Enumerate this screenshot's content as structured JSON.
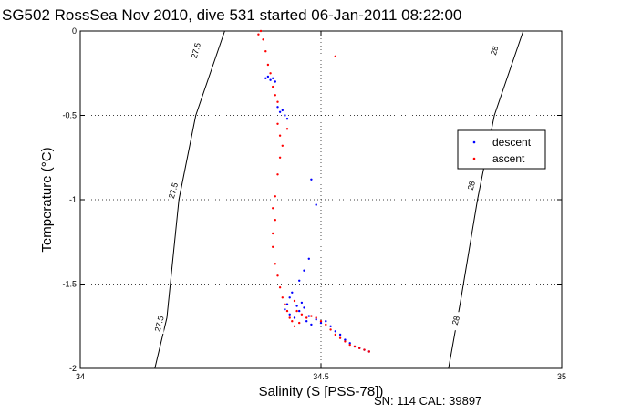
{
  "chart_data": {
    "type": "scatter",
    "title": "SG502 RossSea Nov 2010, dive 531 started 06-Jan-2011 08:22:00",
    "xlabel": "Salinity (S [PSS-78])",
    "ylabel": "Temperature (°C)",
    "xlim": [
      34,
      35
    ],
    "ylim": [
      -2,
      0
    ],
    "x_ticks": [
      "34",
      "34.5",
      "35"
    ],
    "y_ticks": [
      "0",
      "-0.5",
      "-1",
      "-1.5",
      "-2"
    ],
    "grid": true,
    "legend_position": "right",
    "isopycnals": [
      {
        "label": "27.5",
        "points": [
          [
            34.155,
            -2.0
          ],
          [
            34.18,
            -1.7
          ],
          [
            34.205,
            -1.0
          ],
          [
            34.24,
            -0.5
          ],
          [
            34.3,
            0.0
          ]
        ]
      },
      {
        "label": "28",
        "points": [
          [
            34.765,
            -2.0
          ],
          [
            34.79,
            -1.6
          ],
          [
            34.825,
            -1.0
          ],
          [
            34.86,
            -0.5
          ],
          [
            34.92,
            0.0
          ]
        ]
      }
    ],
    "isopycnal_label_positions": [
      {
        "label": "27.5",
        "s": 34.24,
        "t": -0.12
      },
      {
        "label": "27.5",
        "s": 34.193,
        "t": -0.95
      },
      {
        "label": "27.5",
        "s": 34.164,
        "t": -1.74
      },
      {
        "label": "28",
        "s": 34.86,
        "t": -0.12
      },
      {
        "label": "28",
        "s": 34.812,
        "t": -0.92
      },
      {
        "label": "28",
        "s": 34.78,
        "t": -1.72
      }
    ],
    "series": [
      {
        "name": "descent",
        "color": "#0000ff",
        "points": [
          [
            34.385,
            -0.28
          ],
          [
            34.39,
            -0.27
          ],
          [
            34.395,
            -0.29
          ],
          [
            34.4,
            -0.28
          ],
          [
            34.405,
            -0.3
          ],
          [
            34.41,
            -0.45
          ],
          [
            34.415,
            -0.48
          ],
          [
            34.42,
            -0.47
          ],
          [
            34.425,
            -0.5
          ],
          [
            34.43,
            -0.52
          ],
          [
            34.48,
            -0.88
          ],
          [
            34.49,
            -1.03
          ],
          [
            34.475,
            -1.35
          ],
          [
            34.465,
            -1.42
          ],
          [
            34.455,
            -1.48
          ],
          [
            34.44,
            -1.55
          ],
          [
            34.435,
            -1.58
          ],
          [
            34.43,
            -1.62
          ],
          [
            34.425,
            -1.65
          ],
          [
            34.435,
            -1.68
          ],
          [
            34.445,
            -1.7
          ],
          [
            34.45,
            -1.63
          ],
          [
            34.455,
            -1.66
          ],
          [
            34.46,
            -1.61
          ],
          [
            34.465,
            -1.64
          ],
          [
            34.47,
            -1.72
          ],
          [
            34.475,
            -1.69
          ],
          [
            34.48,
            -1.74
          ],
          [
            34.49,
            -1.71
          ],
          [
            34.5,
            -1.73
          ],
          [
            34.51,
            -1.72
          ],
          [
            34.52,
            -1.75
          ],
          [
            34.53,
            -1.78
          ],
          [
            34.54,
            -1.8
          ],
          [
            34.55,
            -1.83
          ],
          [
            34.56,
            -1.85
          ],
          [
            34.57,
            -1.87
          ],
          [
            34.58,
            -1.88
          ],
          [
            34.59,
            -1.89
          ],
          [
            34.6,
            -1.9
          ]
        ]
      },
      {
        "name": "ascent",
        "color": "#ff0000",
        "points": [
          [
            34.37,
            -0.02
          ],
          [
            34.375,
            0.0
          ],
          [
            34.38,
            -0.05
          ],
          [
            34.385,
            -0.12
          ],
          [
            34.39,
            -0.2
          ],
          [
            34.395,
            -0.25
          ],
          [
            34.4,
            -0.33
          ],
          [
            34.405,
            -0.38
          ],
          [
            34.41,
            -0.42
          ],
          [
            34.41,
            -0.55
          ],
          [
            34.415,
            -0.62
          ],
          [
            34.42,
            -0.68
          ],
          [
            34.415,
            -0.75
          ],
          [
            34.41,
            -0.85
          ],
          [
            34.405,
            -0.98
          ],
          [
            34.4,
            -1.05
          ],
          [
            34.405,
            -1.12
          ],
          [
            34.4,
            -1.2
          ],
          [
            34.4,
            -1.28
          ],
          [
            34.405,
            -1.38
          ],
          [
            34.41,
            -1.45
          ],
          [
            34.415,
            -1.52
          ],
          [
            34.42,
            -1.58
          ],
          [
            34.425,
            -1.62
          ],
          [
            34.43,
            -1.66
          ],
          [
            34.435,
            -1.7
          ],
          [
            34.44,
            -1.72
          ],
          [
            34.445,
            -1.75
          ],
          [
            34.455,
            -1.73
          ],
          [
            34.46,
            -1.68
          ],
          [
            34.47,
            -1.7
          ],
          [
            34.48,
            -1.69
          ],
          [
            34.49,
            -1.7
          ],
          [
            34.5,
            -1.72
          ],
          [
            34.51,
            -1.74
          ],
          [
            34.52,
            -1.77
          ],
          [
            34.53,
            -1.8
          ],
          [
            34.54,
            -1.82
          ],
          [
            34.55,
            -1.84
          ],
          [
            34.56,
            -1.86
          ],
          [
            34.57,
            -1.87
          ],
          [
            34.58,
            -1.88
          ],
          [
            34.59,
            -1.89
          ],
          [
            34.6,
            -1.9
          ],
          [
            34.53,
            -0.15
          ],
          [
            34.43,
            -0.58
          ],
          [
            34.445,
            -1.6
          ],
          [
            34.45,
            -1.66
          ]
        ]
      }
    ],
    "footer": "SN: 114  CAL: 39897"
  }
}
